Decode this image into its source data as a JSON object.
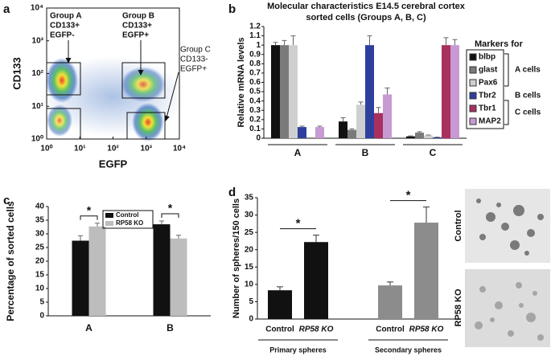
{
  "chart_data": [
    {
      "panel": "a",
      "type": "density",
      "xlabel": "EGFP",
      "ylabel": "CD133",
      "log_x": true,
      "log_y": true,
      "xlim": [
        1,
        10000
      ],
      "ylim": [
        1,
        10000
      ],
      "xticks": [
        {
          "value": 1,
          "label": "10⁰"
        },
        {
          "value": 10,
          "label": "10¹"
        },
        {
          "value": 100,
          "label": "10²"
        },
        {
          "value": 1000,
          "label": "10³"
        },
        {
          "value": 10000,
          "label": "10⁴"
        }
      ],
      "yticks": [
        {
          "value": 1,
          "label": "10⁰"
        },
        {
          "value": 10,
          "label": "10¹"
        },
        {
          "value": 100,
          "label": "10²"
        },
        {
          "value": 1000,
          "label": "10³"
        },
        {
          "value": 10000,
          "label": "10⁴"
        }
      ],
      "groups": [
        [
          "Group A",
          "CD133+",
          "EGFP-"
        ],
        [
          "Group B",
          "CD133+",
          "EGFP+"
        ],
        [
          "Group C",
          "CD133-",
          "EGFP+"
        ]
      ]
    },
    {
      "panel": "b",
      "type": "bar",
      "title": [
        "Molecular characteristics E14.5 cerebral cortex",
        "sorted cells (Groups A, B, C)"
      ],
      "ylabel": "Relative mRNA levels",
      "categories": [
        "A",
        "B",
        "C"
      ],
      "ylim": [
        0,
        1.2
      ],
      "yticks": [
        0,
        0.1,
        0.2,
        0.3,
        0.4,
        0.5,
        0.6,
        0.7,
        0.8,
        0.9,
        1,
        1.1,
        1.2
      ],
      "legend_title": "Markers for",
      "marker_groups": [
        "A cells",
        "B cells",
        "C cells"
      ],
      "series": [
        {
          "name": "blbp",
          "color": "#111111",
          "values": [
            1.0,
            0.18,
            0.02
          ],
          "errors": [
            0.03,
            0.04,
            0.005
          ]
        },
        {
          "name": "glast",
          "color": "#7a7a7a",
          "values": [
            1.0,
            0.09,
            0.06
          ],
          "errors": [
            0.05,
            0.01,
            0.01
          ]
        },
        {
          "name": "Pax6",
          "color": "#cfcfcf",
          "values": [
            1.0,
            0.36,
            0.03
          ],
          "errors": [
            0.1,
            0.03,
            0.005
          ]
        },
        {
          "name": "Tbr2",
          "color": "#2e3f9e",
          "values": [
            0.12,
            1.0,
            0.01
          ],
          "errors": [
            0.01,
            0.1,
            0.002
          ]
        },
        {
          "name": "Tbr1",
          "color": "#a8305f",
          "values": [
            0.0,
            0.27,
            1.0
          ],
          "errors": [
            0.0,
            0.06,
            0.08
          ]
        },
        {
          "name": "MAP2",
          "color": "#c89ad3",
          "values": [
            0.12,
            0.47,
            1.0
          ],
          "errors": [
            0.01,
            0.07,
            0.06
          ]
        }
      ]
    },
    {
      "panel": "c",
      "type": "bar",
      "ylabel": "Percentage of sorted cells",
      "categories": [
        "A",
        "B"
      ],
      "ylim": [
        0,
        40
      ],
      "yticks": [
        0,
        5,
        10,
        15,
        20,
        25,
        30,
        35,
        40
      ],
      "significance": [
        "*",
        "*"
      ],
      "series": [
        {
          "name": "Control",
          "color": "#111111",
          "values": [
            27.5,
            33.5
          ],
          "errors": [
            1.8,
            1.2
          ]
        },
        {
          "name": "RP58 KO",
          "color": "#bdbdbd",
          "values": [
            32.7,
            28.3
          ],
          "errors": [
            1.2,
            1.2
          ]
        }
      ]
    },
    {
      "panel": "d",
      "type": "bar",
      "ylabel": "Number of spheres/150 cells",
      "categories": [
        "Control",
        "RP58 KO",
        "Control",
        "RP58 KO"
      ],
      "groups": [
        "Primary spheres",
        "Secondary spheres"
      ],
      "colors": [
        "#111111",
        "#111111",
        "#8c8c8c",
        "#8c8c8c"
      ],
      "ylim": [
        0,
        35
      ],
      "yticks": [
        0,
        5,
        10,
        15,
        20,
        25,
        30,
        35
      ],
      "values": [
        8.3,
        22.2,
        9.7,
        27.8
      ],
      "errors": [
        1.0,
        2.0,
        1.0,
        4.5
      ],
      "significance": [
        "*",
        "*"
      ],
      "image_labels": [
        "Control",
        "RP58 KO"
      ]
    }
  ]
}
